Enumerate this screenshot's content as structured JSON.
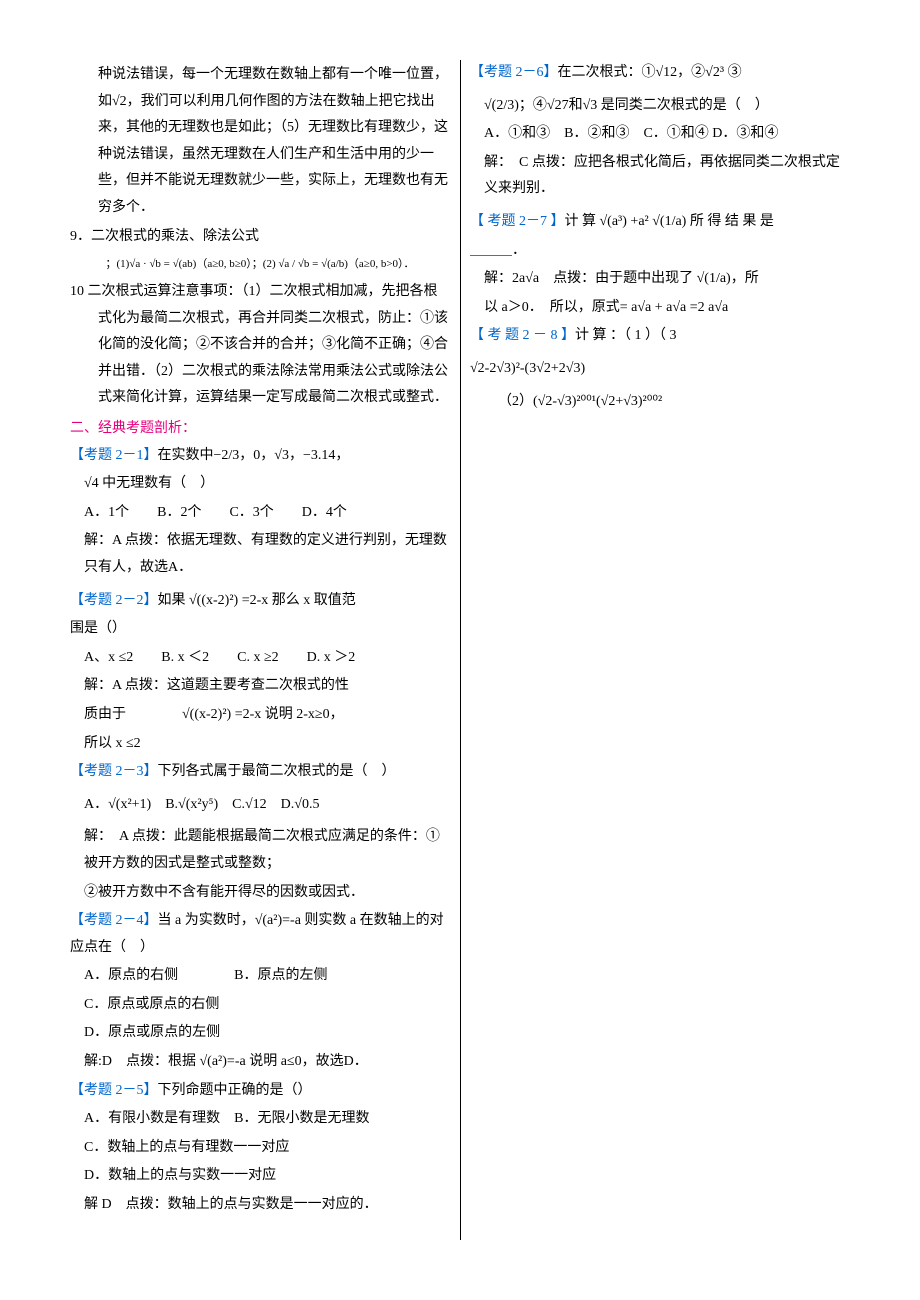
{
  "page": {
    "background_color": "#ffffff",
    "text_color": "#000000",
    "section_color": "#e6007e",
    "exam_color": "#0066cc",
    "font_family": "SimSun",
    "font_size_pt": 10.5,
    "line_height": 1.9,
    "columns": 2,
    "column_rule_color": "#000000"
  },
  "p8a": "种说法错误，每一个无理数在数轴上都有一个唯一位置，如√2，我们可以利用几何作图的方法在数轴上把它找出来，其他的无理数也是如此；（5）无理数比有理数少，这种说法错误，虽然无理数在人们生产和生活中用的少一些，但并不能说无理数就少一些，实际上，无理数也有无穷多个．",
  "p9": "9．二次根式的乘法、除法公式",
  "formula9": "；(1)√a · √b = √(ab)（a≥0, b≥0）；(2) √a / √b = √(a/b)（a≥0, b>0）．",
  "p10": "10 二次根式运算注意事项：（1）二次根式相加减，先把各根式化为最简二次根式，再合并同类二次根式，防止：①该化简的没化简；②不该合并的合并；③化简不正确；④合并出错．（2）二次根式的乘法除法常用乘法公式或除法公式来简化计算，运算结果一定写成最简二次根式或整式．",
  "sec2": "二、经典考题剖析：",
  "q1_tag": "【考题 2－1】",
  "q1_a": "在实数中−2/3，0，√3，−3.14，",
  "q1_b": "√4 中无理数有（　）",
  "q1_opts": "A．1个　　B．2个　　C．3个　　D．4个",
  "q1_ans": "解：A 点拨：依据无理数、有理数的定义进行判别，无理数只有人，故选A．",
  "q2_tag": "【考题 2－2】",
  "q2_a": "如果 √((x-2)²) =2-x 那么 x 取值范",
  "q2_a2": "围是（）",
  "q2_opts": "A、x ≤2　　B. x ＜2　　C. x ≥2　　D. x ＞2",
  "q2_ans1": "解：A 点拨：这道题主要考查二次根式的性",
  "q2_ans2": "质由于　　　　√((x-2)²) =2-x 说明 2-x≥0，",
  "q2_ans3": "所以 x ≤2",
  "q3_tag": "【考题 2－3】",
  "q3_a": "下列各式属于最简二次根式的是（　）",
  "q3_opts": "A．√(x²+1)　B.√(x²y⁵)　C.√12　D.√0.5",
  "q3_ans": "解：　A 点拨：此题能根据最简二次根式应满足的条件：①被开方数的因式是整式或整数；",
  "q3_ans_r": "②被开方数中不含有能开得尽的因数或因式．",
  "q4_tag": "【考题 2－4】",
  "q4_a": "当 a 为实数时，√(a²)=-a 则实数 a 在数轴上的对应点在（　）",
  "q4_optA": "A．原点的右侧",
  "q4_optB": "B．原点的左侧",
  "q4_optC": "C．原点或原点的右侧",
  "q4_optD": "D．原点或原点的左侧",
  "q4_ans": "解:D　点拨：根据 √(a²)=-a 说明 a≤0，故选D．",
  "q5_tag": "【考题 2－5】",
  "q5_a": "下列命题中正确的是（）",
  "q5_optA": "A．有限小数是有理数",
  "q5_optB": "B．无限小数是无理数",
  "q5_optC": "C．数轴上的点与有理数一一对应",
  "q5_optD": "D．数轴上的点与实数一一对应",
  "q5_ans": "解 D　点拨：数轴上的点与实数是一一对应的．",
  "q6_tag": "【考题 2－6】",
  "q6_a": "在二次根式：①√12，②√2³ ③",
  "q6_b": "√(2/3)；④√27和√3 是同类二次根式的是（　）",
  "q6_opts": "A．①和③　B．②和③　C．①和④ D．③和④",
  "q6_ans": "解：　C 点拨：应把各根式化简后，再依据同类二次根式定义来判别．",
  "q7_tag": "【 考题 2－7 】",
  "q7_a": "计 算 √(a³) +a² √(1/a) 所 得 结 果 是",
  "q7_blank": "＿＿＿．",
  "q7_ans1": "解：2a√a　点拨：由于题中出现了 √(1/a)，所",
  "q7_ans2": "以 a＞0．　所以，原式= a√a + a√a =2 a√a",
  "q8_tagx": "【 考 题 2 － 8 】",
  "q8_a": "计 算 ：（ 1 ）（ 3",
  "q8_b": "√2-2√3)²-(3√2+2√3)",
  "q8_c": "（2）(√2-√3)²⁰⁰¹(√2+√3)²⁰⁰²"
}
